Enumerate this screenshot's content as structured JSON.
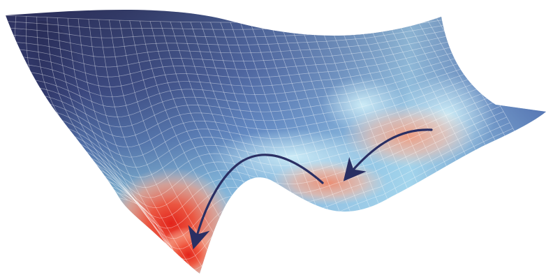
{
  "figure": {
    "kind": "3d-energy-landscape-surface",
    "background": "#ffffff",
    "mesh_line_color": "#ffffff",
    "colormap": {
      "high": "#2c2f5c",
      "mid_high": "#5b78b4",
      "mid": "#9fd2ea",
      "mid_low": "#f3c7b4",
      "low": "#f38e6e",
      "lowest": "#e8301f"
    },
    "arrow_color": "#2a2f63",
    "arrows": [
      {
        "name": "arrow-into-middle-basin"
      },
      {
        "name": "arrow-into-deepest-basin"
      }
    ]
  }
}
